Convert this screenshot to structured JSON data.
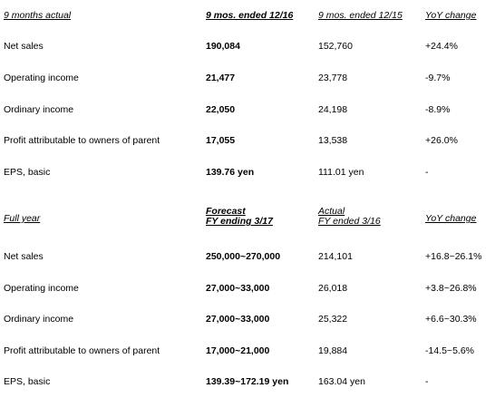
{
  "nine_months": {
    "header": {
      "label": "9 months actual",
      "current": "9 mos. ended 12/16",
      "prior": "9 mos. ended 12/15",
      "change": "YoY change"
    },
    "rows": [
      {
        "label": "Net sales",
        "current": "190,084",
        "prior": "152,760",
        "change": "+24.4%"
      },
      {
        "label": "Operating income",
        "current": "21,477",
        "prior": "23,778",
        "change": "-9.7%"
      },
      {
        "label": "Ordinary income",
        "current": "22,050",
        "prior": "24,198",
        "change": "-8.9%"
      },
      {
        "label": "Profit attributable to owners of parent",
        "current": "17,055",
        "prior": "13,538",
        "change": "+26.0%"
      },
      {
        "label": "EPS, basic",
        "current": "139.76 yen",
        "prior": "111.01 yen",
        "change": "-"
      }
    ]
  },
  "full_year": {
    "header": {
      "label": "Full year",
      "current_line1": "Forecast",
      "current_line2": "FY ending 3/17",
      "prior_line1": "Actual",
      "prior_line2": "FY ended 3/16",
      "change": "YoY change"
    },
    "rows": [
      {
        "label": "Net sales",
        "current": "250,000~270,000",
        "prior": "214,101",
        "change": "+16.8~26.1%"
      },
      {
        "label": "Operating income",
        "current": "27,000~33,000",
        "prior": "26,018",
        "change": "+3.8~26.8%"
      },
      {
        "label": "Ordinary income",
        "current": "27,000~33,000",
        "prior": "25,322",
        "change": "+6.6~30.3%"
      },
      {
        "label": "Profit attributable to owners of parent",
        "current": "17,000~21,000",
        "prior": "19,884",
        "change": "-14.5~5.6%"
      },
      {
        "label": "EPS, basic",
        "current": "139.39~172.19 yen",
        "prior": "163.04 yen",
        "change": "-"
      }
    ]
  }
}
